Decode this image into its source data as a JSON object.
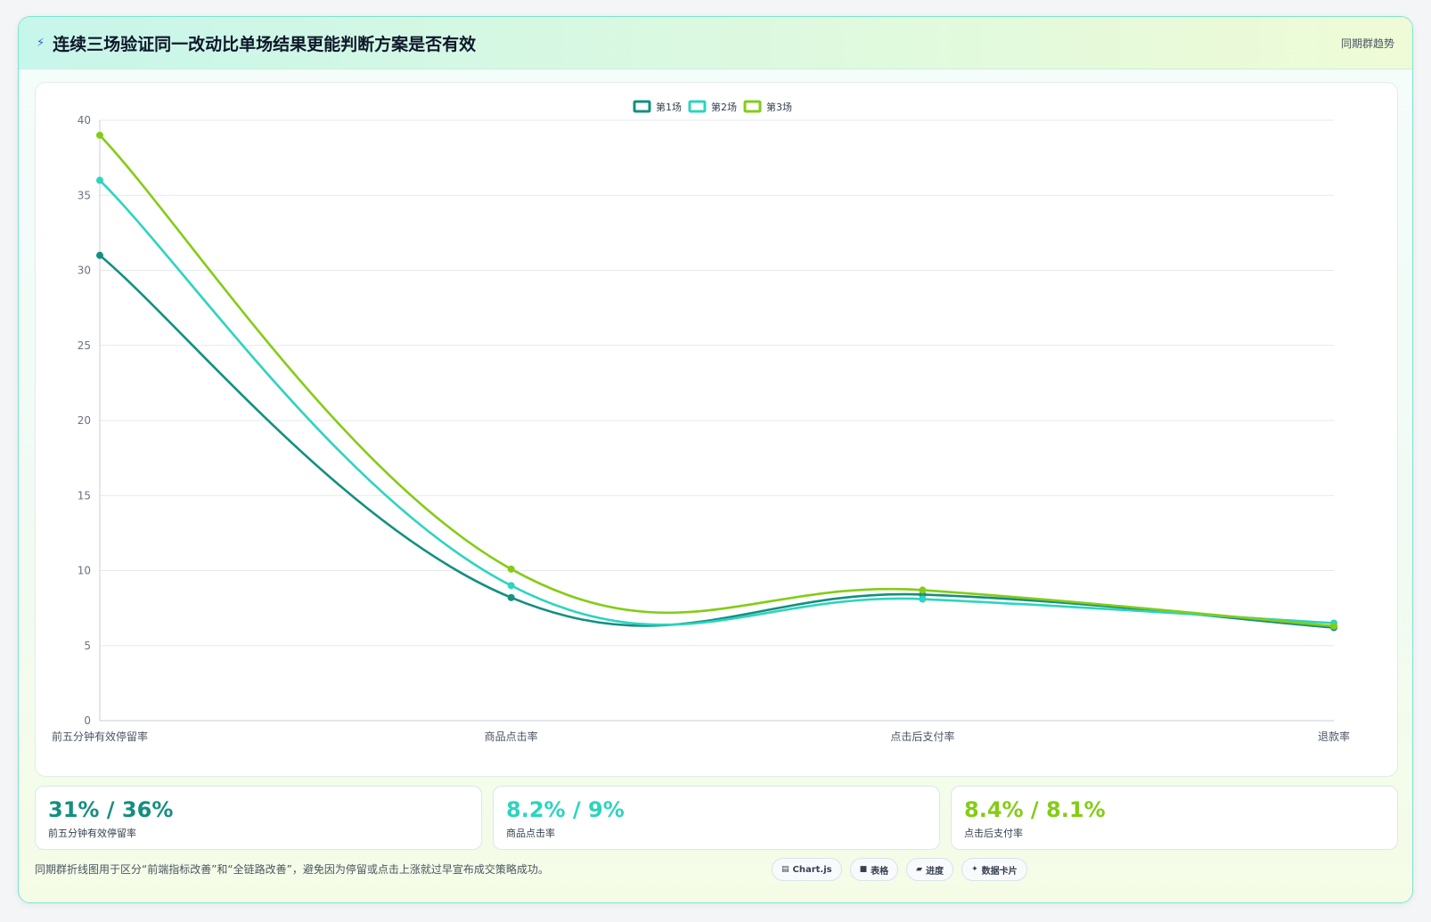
{
  "header": {
    "icon": "lightning-icon",
    "title": "连续三场验证同一改动比单场结果更能判断方案是否有效",
    "link": "同期群趋势"
  },
  "chart_data": {
    "type": "line",
    "categories": [
      "前五分钟有效停留率",
      "商品点击率",
      "点击后支付率",
      "退款率"
    ],
    "series": [
      {
        "name": "第1场",
        "color": "#148f80",
        "values": [
          31,
          8.2,
          8.4,
          6.2
        ]
      },
      {
        "name": "第2场",
        "color": "#2dd4bf",
        "values": [
          36,
          9,
          8.1,
          6.5
        ]
      },
      {
        "name": "第3场",
        "color": "#84cc16",
        "values": [
          39,
          10.1,
          8.7,
          6.3
        ]
      }
    ],
    "ylim": [
      0,
      40
    ],
    "yticks": [
      0,
      5,
      10,
      15,
      20,
      25,
      30,
      35,
      40
    ],
    "legend_position": "top-center",
    "grid": true
  },
  "stats": [
    {
      "value": "31% / 36%",
      "label": "前五分钟有效停留率",
      "color": "#148f80"
    },
    {
      "value": "8.2% / 9%",
      "label": "商品点击率",
      "color": "#2dd4bf"
    },
    {
      "value": "8.4% / 8.1%",
      "label": "点击后支付率",
      "color": "#84cc16"
    }
  ],
  "footer": {
    "note": "同期群折线图用于区分“前端指标改善”和“全链路改善”，避免因为停留或点击上涨就过早宣布成交策略成功。",
    "chips": [
      {
        "icon": "chart-icon",
        "label": "Chart.js"
      },
      {
        "icon": "table-icon",
        "label": "表格"
      },
      {
        "icon": "progress-icon",
        "label": "进度"
      },
      {
        "icon": "sparkle-icon",
        "label": "数据卡片"
      }
    ]
  }
}
